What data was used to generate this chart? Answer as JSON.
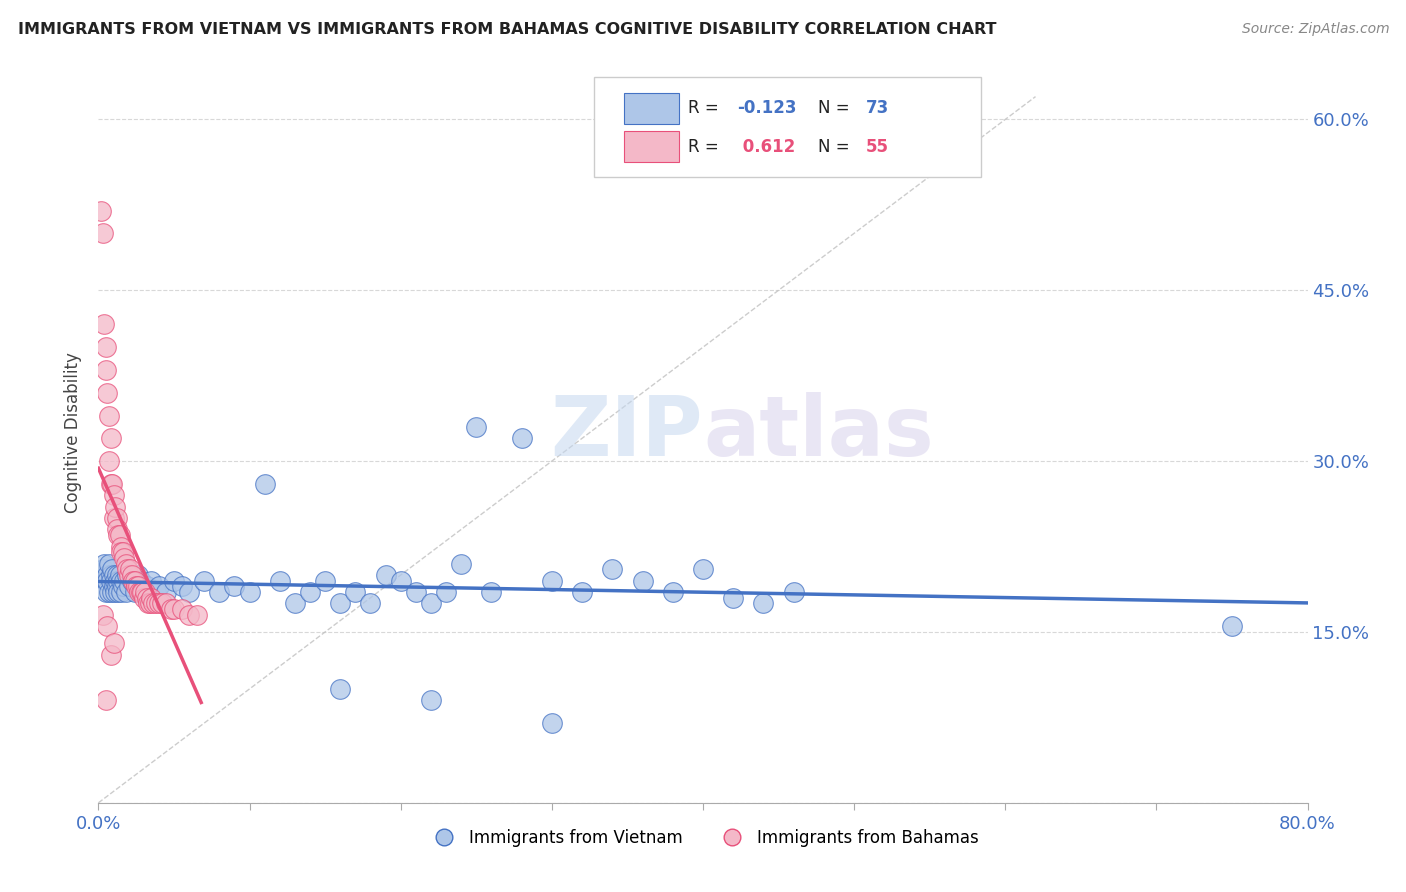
{
  "title": "IMMIGRANTS FROM VIETNAM VS IMMIGRANTS FROM BAHAMAS COGNITIVE DISABILITY CORRELATION CHART",
  "source": "Source: ZipAtlas.com",
  "ylabel": "Cognitive Disability",
  "xlim": [
    0.0,
    0.8
  ],
  "ylim": [
    0.0,
    0.65
  ],
  "yticks": [
    0.0,
    0.15,
    0.3,
    0.45,
    0.6
  ],
  "ytick_labels_right": [
    "",
    "15.0%",
    "30.0%",
    "45.0%",
    "60.0%"
  ],
  "xticks": [
    0.0,
    0.1,
    0.2,
    0.3,
    0.4,
    0.5,
    0.6,
    0.7,
    0.8
  ],
  "xtick_labels": [
    "0.0%",
    "",
    "",
    "",
    "",
    "",
    "",
    "",
    "80.0%"
  ],
  "vietnam_fill": "#aec6e8",
  "vietnam_edge": "#4472c4",
  "bahamas_fill": "#f4b8c8",
  "bahamas_edge": "#e8507a",
  "vietnam_line_color": "#4472c4",
  "bahamas_line_color": "#e8507a",
  "diagonal_color": "#c0c0c0",
  "grid_color": "#d8d8d8",
  "R_vietnam": -0.123,
  "N_vietnam": 73,
  "R_bahamas": 0.612,
  "N_bahamas": 55,
  "legend_label_vietnam": "Immigrants from Vietnam",
  "legend_label_bahamas": "Immigrants from Bahamas",
  "watermark": "ZIPatlas",
  "vietnam_points": [
    [
      0.003,
      0.205
    ],
    [
      0.004,
      0.21
    ],
    [
      0.005,
      0.195
    ],
    [
      0.005,
      0.185
    ],
    [
      0.006,
      0.2
    ],
    [
      0.006,
      0.195
    ],
    [
      0.007,
      0.21
    ],
    [
      0.007,
      0.185
    ],
    [
      0.008,
      0.2
    ],
    [
      0.008,
      0.195
    ],
    [
      0.009,
      0.185
    ],
    [
      0.009,
      0.205
    ],
    [
      0.01,
      0.19
    ],
    [
      0.01,
      0.2
    ],
    [
      0.011,
      0.195
    ],
    [
      0.011,
      0.185
    ],
    [
      0.012,
      0.2
    ],
    [
      0.012,
      0.19
    ],
    [
      0.013,
      0.195
    ],
    [
      0.013,
      0.185
    ],
    [
      0.014,
      0.2
    ],
    [
      0.015,
      0.195
    ],
    [
      0.015,
      0.185
    ],
    [
      0.016,
      0.19
    ],
    [
      0.017,
      0.195
    ],
    [
      0.018,
      0.185
    ],
    [
      0.019,
      0.2
    ],
    [
      0.02,
      0.19
    ],
    [
      0.022,
      0.195
    ],
    [
      0.024,
      0.185
    ],
    [
      0.026,
      0.2
    ],
    [
      0.028,
      0.195
    ],
    [
      0.03,
      0.185
    ],
    [
      0.032,
      0.19
    ],
    [
      0.035,
      0.195
    ],
    [
      0.038,
      0.185
    ],
    [
      0.04,
      0.19
    ],
    [
      0.045,
      0.185
    ],
    [
      0.05,
      0.195
    ],
    [
      0.055,
      0.19
    ],
    [
      0.06,
      0.185
    ],
    [
      0.07,
      0.195
    ],
    [
      0.08,
      0.185
    ],
    [
      0.09,
      0.19
    ],
    [
      0.1,
      0.185
    ],
    [
      0.11,
      0.28
    ],
    [
      0.12,
      0.195
    ],
    [
      0.13,
      0.175
    ],
    [
      0.14,
      0.185
    ],
    [
      0.15,
      0.195
    ],
    [
      0.16,
      0.175
    ],
    [
      0.17,
      0.185
    ],
    [
      0.18,
      0.175
    ],
    [
      0.19,
      0.2
    ],
    [
      0.2,
      0.195
    ],
    [
      0.21,
      0.185
    ],
    [
      0.22,
      0.175
    ],
    [
      0.23,
      0.185
    ],
    [
      0.24,
      0.21
    ],
    [
      0.25,
      0.33
    ],
    [
      0.26,
      0.185
    ],
    [
      0.28,
      0.32
    ],
    [
      0.3,
      0.195
    ],
    [
      0.32,
      0.185
    ],
    [
      0.34,
      0.205
    ],
    [
      0.36,
      0.195
    ],
    [
      0.38,
      0.185
    ],
    [
      0.4,
      0.205
    ],
    [
      0.42,
      0.18
    ],
    [
      0.44,
      0.175
    ],
    [
      0.46,
      0.185
    ],
    [
      0.75,
      0.155
    ],
    [
      0.16,
      0.1
    ],
    [
      0.22,
      0.09
    ],
    [
      0.3,
      0.07
    ]
  ],
  "bahamas_points": [
    [
      0.002,
      0.52
    ],
    [
      0.003,
      0.5
    ],
    [
      0.004,
      0.42
    ],
    [
      0.005,
      0.4
    ],
    [
      0.005,
      0.38
    ],
    [
      0.006,
      0.36
    ],
    [
      0.007,
      0.34
    ],
    [
      0.007,
      0.3
    ],
    [
      0.008,
      0.32
    ],
    [
      0.008,
      0.28
    ],
    [
      0.009,
      0.28
    ],
    [
      0.01,
      0.27
    ],
    [
      0.01,
      0.25
    ],
    [
      0.011,
      0.26
    ],
    [
      0.012,
      0.25
    ],
    [
      0.012,
      0.24
    ],
    [
      0.013,
      0.235
    ],
    [
      0.014,
      0.235
    ],
    [
      0.015,
      0.225
    ],
    [
      0.015,
      0.22
    ],
    [
      0.016,
      0.22
    ],
    [
      0.017,
      0.215
    ],
    [
      0.018,
      0.21
    ],
    [
      0.019,
      0.205
    ],
    [
      0.02,
      0.2
    ],
    [
      0.021,
      0.205
    ],
    [
      0.022,
      0.2
    ],
    [
      0.023,
      0.195
    ],
    [
      0.024,
      0.195
    ],
    [
      0.025,
      0.19
    ],
    [
      0.026,
      0.19
    ],
    [
      0.027,
      0.185
    ],
    [
      0.028,
      0.185
    ],
    [
      0.029,
      0.185
    ],
    [
      0.03,
      0.18
    ],
    [
      0.031,
      0.185
    ],
    [
      0.032,
      0.18
    ],
    [
      0.033,
      0.175
    ],
    [
      0.034,
      0.175
    ],
    [
      0.035,
      0.18
    ],
    [
      0.036,
      0.175
    ],
    [
      0.038,
      0.175
    ],
    [
      0.04,
      0.175
    ],
    [
      0.042,
      0.175
    ],
    [
      0.045,
      0.175
    ],
    [
      0.048,
      0.17
    ],
    [
      0.05,
      0.17
    ],
    [
      0.055,
      0.17
    ],
    [
      0.06,
      0.165
    ],
    [
      0.065,
      0.165
    ],
    [
      0.003,
      0.165
    ],
    [
      0.006,
      0.155
    ],
    [
      0.008,
      0.13
    ],
    [
      0.01,
      0.14
    ],
    [
      0.005,
      0.09
    ]
  ]
}
